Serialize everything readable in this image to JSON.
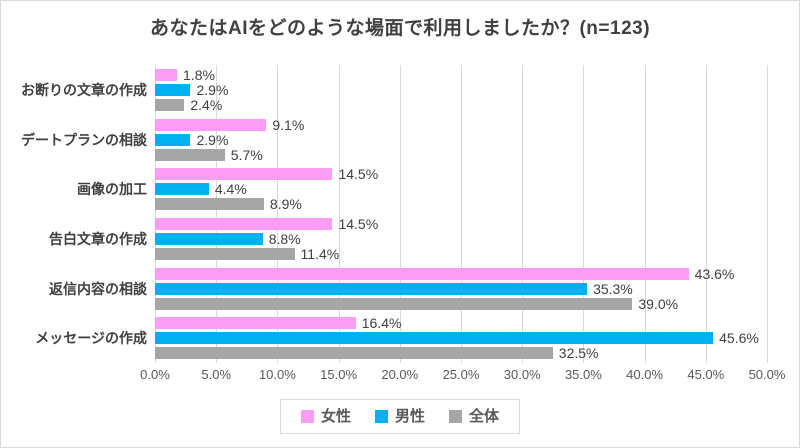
{
  "frame": {
    "background": "#ffffff",
    "border_color": "#d9d9d9",
    "gridline_color": "#d9d9d9",
    "title_color": "#404040",
    "axis_text_color": "#595959"
  },
  "chart_data": {
    "type": "bar",
    "orientation": "horizontal",
    "title": "あなたはAIをどのような場面で利用しましたか？(n=123)",
    "grid": true,
    "legend_position": "bottom",
    "categories": [
      "お断りの文章の作成",
      "デートプランの相談",
      "画像の加工",
      "告白文章の作成",
      "返信内容の相談",
      "メッセージの作成"
    ],
    "series": [
      {
        "name": "女性",
        "color": "#fc9df5",
        "values": [
          1.8,
          9.1,
          14.5,
          14.5,
          43.6,
          16.4
        ],
        "labels": [
          "1.8%",
          "9.1%",
          "14.5%",
          "14.5%",
          "43.6%",
          "16.4%"
        ]
      },
      {
        "name": "男性",
        "color": "#00b0f0",
        "values": [
          2.9,
          2.9,
          4.4,
          8.8,
          35.3,
          45.6
        ],
        "labels": [
          "2.9%",
          "2.9%",
          "4.4%",
          "8.8%",
          "35.3%",
          "45.6%"
        ]
      },
      {
        "name": "全体",
        "color": "#a6a6a6",
        "values": [
          2.4,
          5.7,
          8.9,
          11.4,
          39.0,
          32.5
        ],
        "labels": [
          "2.4%",
          "5.7%",
          "8.9%",
          "11.4%",
          "39.0%",
          "32.5%"
        ]
      }
    ],
    "x_axis": {
      "min": 0,
      "max": 50,
      "tick_step": 5,
      "tick_labels": [
        "0.0%",
        "5.0%",
        "10.0%",
        "15.0%",
        "20.0%",
        "25.0%",
        "30.0%",
        "35.0%",
        "40.0%",
        "45.0%",
        "50.0%"
      ]
    },
    "legend_entries": [
      "女性",
      "男性",
      "全体"
    ]
  }
}
